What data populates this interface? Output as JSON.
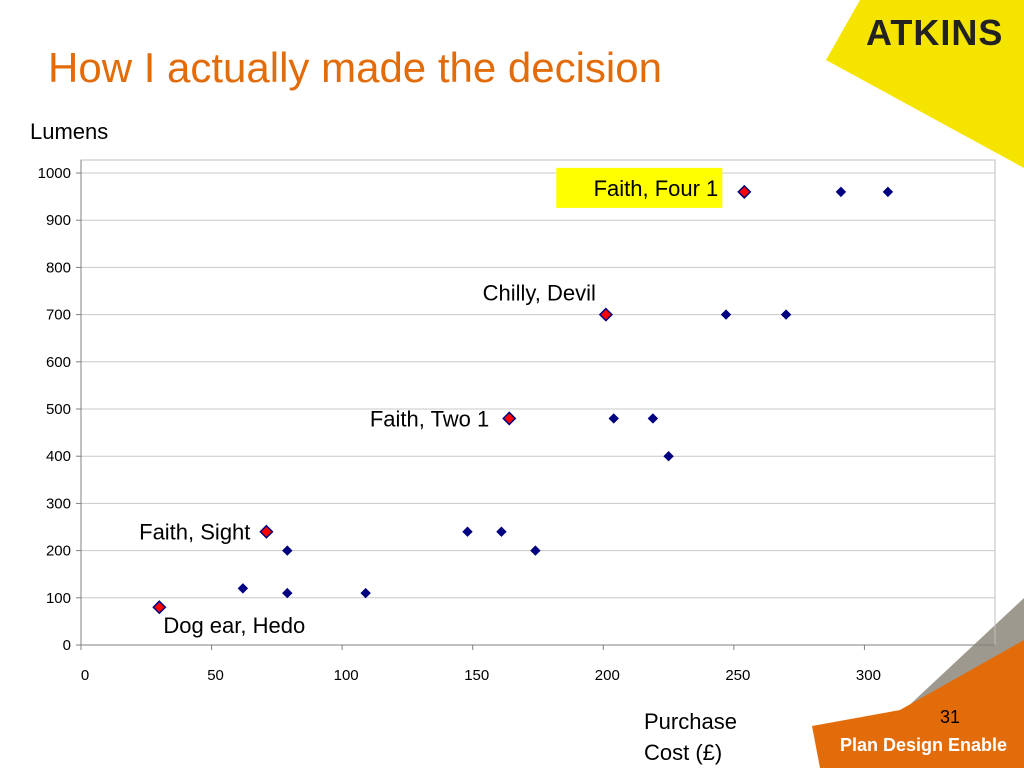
{
  "slide": {
    "title": "How I actually made the decision",
    "logo_text": "ATKINS",
    "tagline": "Plan Design Enable",
    "slide_number": "31",
    "colors": {
      "title": "#e36c0a",
      "logo_yellow": "#f5e400",
      "orange": "#e36c0a",
      "grey": "#9e998e"
    }
  },
  "chart_data": {
    "type": "scatter",
    "title": "",
    "xlabel": "Purchase Cost (£)",
    "xlabel_lines": [
      "Purchase",
      "Cost (£)"
    ],
    "ylabel": "Lumens",
    "xlim": [
      0,
      350
    ],
    "ylim": [
      0,
      1000
    ],
    "x_ticks": [
      0,
      50,
      100,
      150,
      200,
      250,
      300
    ],
    "y_ticks": [
      0,
      100,
      200,
      300,
      400,
      500,
      600,
      700,
      800,
      900,
      1000
    ],
    "grid": "horizontal",
    "series": [
      {
        "color": "#000080",
        "marker": "diamond",
        "points": [
          {
            "x": 62,
            "y": 120
          },
          {
            "x": 79,
            "y": 110
          },
          {
            "x": 79,
            "y": 200
          },
          {
            "x": 109,
            "y": 110
          },
          {
            "x": 148,
            "y": 240
          },
          {
            "x": 161,
            "y": 240
          },
          {
            "x": 174,
            "y": 200
          },
          {
            "x": 204,
            "y": 480
          },
          {
            "x": 219,
            "y": 480
          },
          {
            "x": 225,
            "y": 400
          },
          {
            "x": 247,
            "y": 700
          },
          {
            "x": 270,
            "y": 700
          },
          {
            "x": 291,
            "y": 960
          },
          {
            "x": 309,
            "y": 960
          }
        ]
      },
      {
        "color": "#ff0000",
        "marker": "diamond",
        "points": [
          {
            "x": 30,
            "y": 80,
            "label": "Dog ear, Hedo"
          },
          {
            "x": 71,
            "y": 240,
            "label": "Faith, Sight"
          },
          {
            "x": 164,
            "y": 480,
            "label": "Faith, Two 1"
          },
          {
            "x": 201,
            "y": 700,
            "label": "Chilly, Devil"
          },
          {
            "x": 254,
            "y": 960,
            "label": "Faith, Four 1",
            "highlight": "#ffff00"
          }
        ]
      }
    ]
  }
}
